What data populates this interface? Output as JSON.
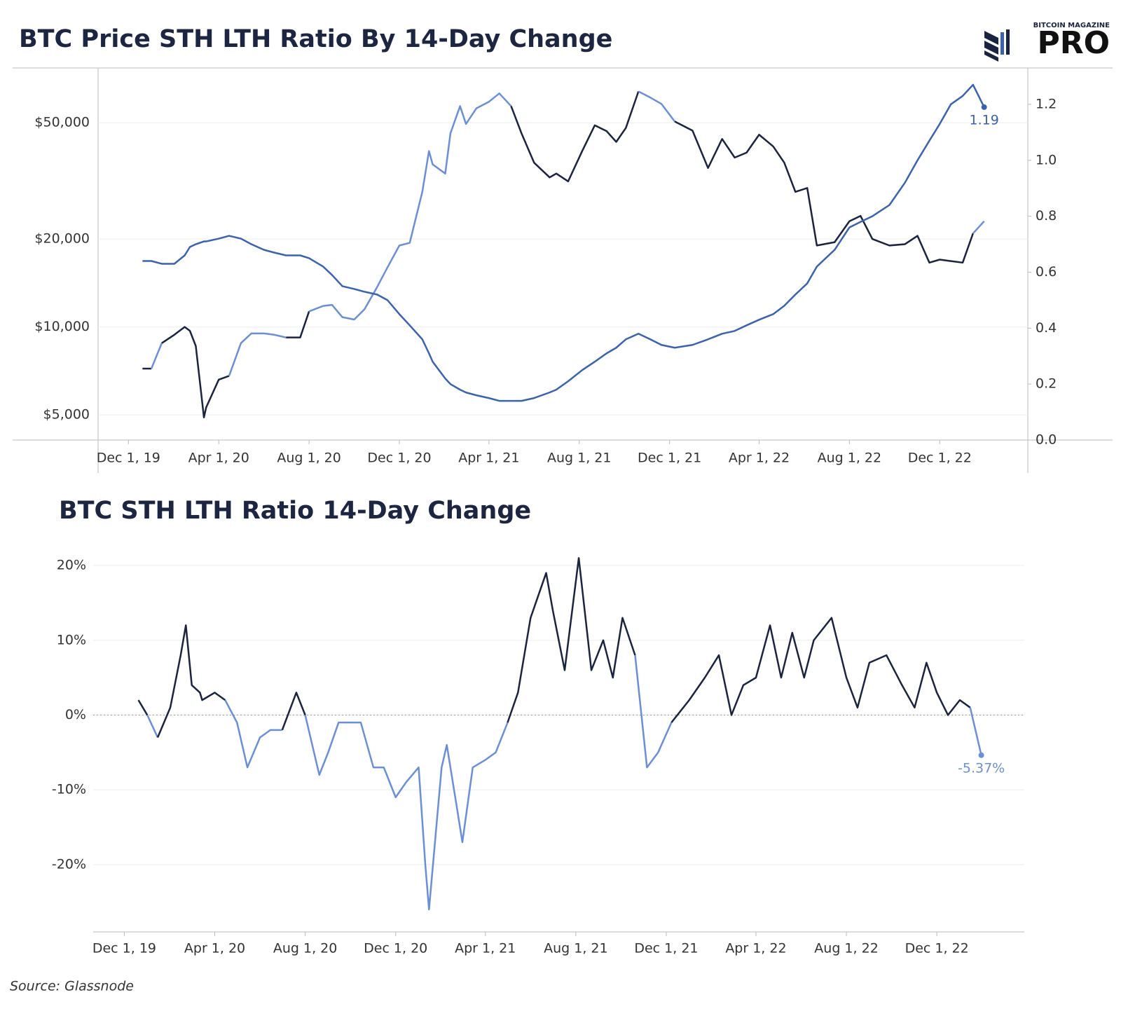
{
  "chart_data": [
    {
      "type": "line",
      "title": "BTC Price STH LTH Ratio By 14-Day Change",
      "x": [
        "2019-12-20",
        "2020-01-01",
        "2020-01-15",
        "2020-02-01",
        "2020-02-15",
        "2020-02-22",
        "2020-03-01",
        "2020-03-12",
        "2020-03-15",
        "2020-04-01",
        "2020-04-15",
        "2020-05-01",
        "2020-05-15",
        "2020-06-01",
        "2020-06-15",
        "2020-07-01",
        "2020-07-20",
        "2020-08-01",
        "2020-08-20",
        "2020-09-01",
        "2020-09-15",
        "2020-10-01",
        "2020-10-15",
        "2020-11-01",
        "2020-11-15",
        "2020-12-01",
        "2020-12-15",
        "2021-01-01",
        "2021-01-10",
        "2021-01-15",
        "2021-02-01",
        "2021-02-08",
        "2021-02-21",
        "2021-03-01",
        "2021-03-15",
        "2021-04-01",
        "2021-04-15",
        "2021-05-01",
        "2021-05-15",
        "2021-06-01",
        "2021-06-22",
        "2021-07-01",
        "2021-07-17",
        "2021-08-05",
        "2021-08-22",
        "2021-09-07",
        "2021-09-20",
        "2021-10-03",
        "2021-10-20",
        "2021-11-05",
        "2021-11-20",
        "2021-12-08",
        "2022-01-01",
        "2022-01-22",
        "2022-02-10",
        "2022-02-27",
        "2022-03-15",
        "2022-04-01",
        "2022-04-20",
        "2022-05-05",
        "2022-05-20",
        "2022-06-05",
        "2022-06-18",
        "2022-07-12",
        "2022-08-01",
        "2022-08-16",
        "2022-09-01",
        "2022-09-24",
        "2022-10-15",
        "2022-11-01",
        "2022-11-17",
        "2022-12-01",
        "2022-12-16",
        "2023-01-01",
        "2023-01-15",
        "2023-01-30"
      ],
      "series": [
        {
          "color": "#1a2340",
          "negative_color": "#6a8fd8",
          "values": [
            7200,
            7200,
            8800,
            9400,
            10000,
            9700,
            8600,
            4900,
            5300,
            6600,
            6800,
            8800,
            9500,
            9500,
            9400,
            9200,
            9200,
            11300,
            11800,
            11900,
            10800,
            10600,
            11500,
            13700,
            16000,
            19000,
            19400,
            29000,
            40000,
            36000,
            33500,
            46000,
            57000,
            49500,
            56000,
            59000,
            63000,
            57000,
            46000,
            36500,
            32500,
            33500,
            31500,
            40000,
            49000,
            46800,
            43000,
            48000,
            64000,
            61000,
            58000,
            50500,
            47000,
            35000,
            44000,
            38000,
            39500,
            45500,
            41500,
            36500,
            29000,
            29900,
            19000,
            19500,
            23000,
            24000,
            20000,
            19000,
            19200,
            20500,
            16600,
            17000,
            16800,
            16600,
            20900,
            23000
          ]
        },
        {
          "color": "#3a62b0",
          "axis": "y2",
          "values": [
            0.64,
            0.64,
            0.63,
            0.63,
            0.66,
            0.69,
            0.7,
            0.71,
            0.71,
            0.72,
            0.73,
            0.72,
            0.7,
            0.68,
            0.67,
            0.66,
            0.66,
            0.65,
            0.62,
            0.59,
            0.55,
            0.54,
            0.53,
            0.52,
            0.5,
            0.45,
            0.41,
            0.36,
            0.31,
            0.28,
            0.22,
            0.2,
            0.18,
            0.17,
            0.16,
            0.15,
            0.14,
            0.14,
            0.14,
            0.15,
            0.17,
            0.18,
            0.21,
            0.25,
            0.28,
            0.31,
            0.33,
            0.36,
            0.38,
            0.36,
            0.34,
            0.33,
            0.34,
            0.36,
            0.38,
            0.39,
            0.41,
            0.43,
            0.45,
            0.48,
            0.52,
            0.56,
            0.62,
            0.68,
            0.76,
            0.78,
            0.8,
            0.84,
            0.92,
            1.0,
            1.07,
            1.13,
            1.2,
            1.23,
            1.27,
            1.19
          ]
        }
      ],
      "xlim": [
        "2019-10-21",
        "2023-03-30"
      ],
      "xticks": [
        {
          "value": "2019-12-01",
          "label": "Dec 1, 19"
        },
        {
          "value": "2020-04-01",
          "label": "Apr 1, 20"
        },
        {
          "value": "2020-08-01",
          "label": "Aug 1, 20"
        },
        {
          "value": "2020-12-01",
          "label": "Dec 1, 20"
        },
        {
          "value": "2021-04-01",
          "label": "Apr 1, 21"
        },
        {
          "value": "2021-08-01",
          "label": "Aug 1, 21"
        },
        {
          "value": "2021-12-01",
          "label": "Dec 1, 21"
        },
        {
          "value": "2022-04-01",
          "label": "Apr 1, 22"
        },
        {
          "value": "2022-08-01",
          "label": "Aug 1, 22"
        },
        {
          "value": "2022-12-01",
          "label": "Dec 1, 22"
        }
      ],
      "ylog": true,
      "ylim": [
        4100,
        77000
      ],
      "yticks": [
        {
          "value": 5000,
          "label": "$5,000"
        },
        {
          "value": 10000,
          "label": "$10,000"
        },
        {
          "value": 20000,
          "label": "$20,000"
        },
        {
          "value": 50000,
          "label": "$50,000"
        }
      ],
      "y2lim": [
        0,
        1.33
      ],
      "y2ticks": [
        {
          "value": 0,
          "label": "0.0"
        },
        0.2,
        0.4,
        0.6,
        0.8,
        {
          "value": 1,
          "label": "1.0"
        },
        1.2
      ],
      "grid": true
    },
    {
      "type": "line",
      "title": "BTC STH LTH Ratio 14-Day Change",
      "x": [
        "2019-12-20",
        "2020-01-01",
        "2020-01-15",
        "2020-02-01",
        "2020-02-15",
        "2020-02-22",
        "2020-03-01",
        "2020-03-12",
        "2020-03-15",
        "2020-04-01",
        "2020-04-15",
        "2020-05-01",
        "2020-05-15",
        "2020-06-01",
        "2020-06-15",
        "2020-07-01",
        "2020-07-20",
        "2020-08-01",
        "2020-08-20",
        "2020-09-01",
        "2020-09-15",
        "2020-10-01",
        "2020-10-15",
        "2020-11-01",
        "2020-11-15",
        "2020-12-01",
        "2020-12-15",
        "2021-01-01",
        "2021-01-10",
        "2021-01-15",
        "2021-02-01",
        "2021-02-08",
        "2021-02-21",
        "2021-03-01",
        "2021-03-15",
        "2021-04-01",
        "2021-04-15",
        "2021-05-01",
        "2021-05-15",
        "2021-06-01",
        "2021-06-22",
        "2021-07-01",
        "2021-07-17",
        "2021-08-05",
        "2021-08-22",
        "2021-09-07",
        "2021-09-20",
        "2021-10-03",
        "2021-10-20",
        "2021-11-05",
        "2021-11-20",
        "2021-12-08",
        "2022-01-01",
        "2022-01-22",
        "2022-02-10",
        "2022-02-27",
        "2022-03-15",
        "2022-04-01",
        "2022-04-20",
        "2022-05-05",
        "2022-05-20",
        "2022-06-05",
        "2022-06-18",
        "2022-07-12",
        "2022-08-01",
        "2022-08-16",
        "2022-09-01",
        "2022-09-24",
        "2022-10-15",
        "2022-11-01",
        "2022-11-17",
        "2022-12-01",
        "2022-12-16",
        "2023-01-01",
        "2023-01-15",
        "2023-01-30"
      ],
      "series": [
        {
          "color": "#1a2340",
          "negative_color": "#6a8fd8",
          "values": [
            2,
            0,
            -3,
            1,
            8,
            12,
            4,
            3,
            2,
            3,
            2,
            -1,
            -7,
            -3,
            -2,
            -2,
            3,
            0,
            -8,
            -5,
            -1,
            -1,
            -1,
            -7,
            -7,
            -11,
            -9,
            -7,
            -20,
            -26,
            -7,
            -4,
            -12,
            -17,
            -7,
            -6,
            -5,
            -1,
            3,
            13,
            19,
            14,
            6,
            21,
            6,
            10,
            5,
            13,
            8,
            -7,
            -5,
            -1,
            2,
            5,
            8,
            0,
            4,
            5,
            12,
            5,
            11,
            5,
            10,
            13,
            5,
            1,
            7,
            8,
            4,
            1,
            7,
            3,
            0,
            2,
            1,
            -5.37
          ],
          "value_labels": [
            null,
            null,
            null,
            null,
            null,
            null,
            null,
            null,
            null,
            null,
            null,
            null,
            null,
            null,
            null,
            null,
            null,
            null,
            null,
            null,
            null,
            null,
            null,
            null,
            null,
            null,
            null,
            null,
            null,
            null,
            null,
            null,
            null,
            null,
            null,
            null,
            null,
            null,
            null,
            null,
            null,
            null,
            null,
            null,
            null,
            null,
            null,
            null,
            null,
            null,
            null,
            null,
            null,
            null,
            null,
            null,
            null,
            null,
            null,
            null,
            null,
            null,
            null,
            null,
            null,
            null,
            null,
            null,
            null,
            null,
            null,
            null,
            null,
            null,
            null,
            "-5.37%"
          ]
        }
      ],
      "xlim": [
        "2019-10-20",
        "2023-03-29"
      ],
      "xticks": [
        {
          "value": "2019-12-01",
          "label": "Dec 1, 19"
        },
        {
          "value": "2020-04-01",
          "label": "Apr 1, 20"
        },
        {
          "value": "2020-08-01",
          "label": "Aug 1, 20"
        },
        {
          "value": "2020-12-01",
          "label": "Dec 1, 20"
        },
        {
          "value": "2021-04-01",
          "label": "Apr 1, 21"
        },
        {
          "value": "2021-08-01",
          "label": "Aug 1, 21"
        },
        {
          "value": "2021-12-01",
          "label": "Dec 1, 21"
        },
        {
          "value": "2022-04-01",
          "label": "Apr 1, 22"
        },
        {
          "value": "2022-08-01",
          "label": "Aug 1, 22"
        },
        {
          "value": "2022-12-01",
          "label": "Dec 1, 22"
        }
      ],
      "ylim": [
        -29,
        23
      ],
      "yticks": [
        {
          "value": -20,
          "label": "-20%"
        },
        {
          "value": -10,
          "label": "-10%"
        },
        {
          "value": 0,
          "label": "0%"
        },
        {
          "value": 10,
          "label": "10%"
        },
        {
          "value": 20,
          "label": "20%"
        }
      ],
      "grid": true,
      "zero_line": true
    }
  ],
  "logo": {
    "top": "BITCOIN MAGAZINE",
    "main": "PRO"
  },
  "source": "Source: Glassnode"
}
